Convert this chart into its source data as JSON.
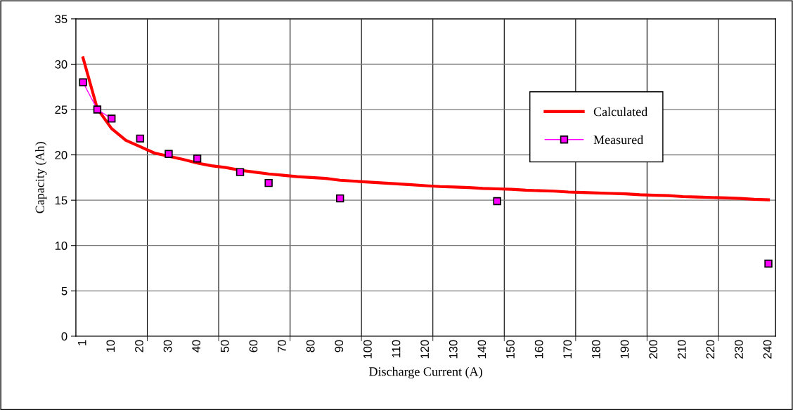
{
  "chart_data": {
    "type": "line",
    "xlabel": "Discharge Current (A)",
    "ylabel": "Capacity (Ah)",
    "categories": [
      "1",
      null,
      "10",
      null,
      "20",
      null,
      "30",
      null,
      "40",
      null,
      "50",
      null,
      "60",
      null,
      "70",
      null,
      "80",
      null,
      "90",
      null,
      "100",
      null,
      "110",
      null,
      "120",
      null,
      "130",
      null,
      "140",
      null,
      "150",
      null,
      "160",
      null,
      "170",
      null,
      "180",
      null,
      "190",
      null,
      "200",
      null,
      "210",
      null,
      "220",
      null,
      "230",
      null,
      "240"
    ],
    "ylim": [
      0,
      35
    ],
    "yticks": [
      0,
      5,
      10,
      15,
      20,
      25,
      30,
      35
    ],
    "grid": true,
    "legend": "top right",
    "series": [
      {
        "name": "Calculated",
        "color": "#ff0000",
        "marker": "none",
        "values": [
          30.7,
          25.1,
          22.9,
          21.6,
          20.9,
          20.2,
          19.85,
          19.5,
          19.1,
          18.8,
          18.6,
          18.3,
          18.1,
          17.9,
          17.75,
          17.6,
          17.5,
          17.4,
          17.2,
          17.1,
          17.0,
          16.9,
          16.8,
          16.7,
          16.6,
          16.5,
          16.45,
          16.4,
          16.3,
          16.25,
          16.2,
          16.1,
          16.05,
          16.0,
          15.9,
          15.85,
          15.8,
          15.75,
          15.7,
          15.6,
          15.55,
          15.5,
          15.4,
          15.35,
          15.3,
          15.25,
          15.2,
          15.1,
          15.05
        ]
      },
      {
        "name": "Measured",
        "color": "#ff00ff",
        "marker": "square",
        "values": [
          28.0,
          25.0,
          24.0,
          null,
          21.8,
          null,
          20.1,
          null,
          19.6,
          null,
          null,
          18.1,
          null,
          16.9,
          null,
          null,
          null,
          null,
          15.2,
          null,
          null,
          null,
          null,
          null,
          null,
          null,
          null,
          null,
          null,
          14.9,
          null,
          null,
          null,
          null,
          null,
          null,
          null,
          null,
          null,
          null,
          null,
          null,
          null,
          null,
          null,
          null,
          null,
          null,
          8.0
        ]
      }
    ]
  }
}
